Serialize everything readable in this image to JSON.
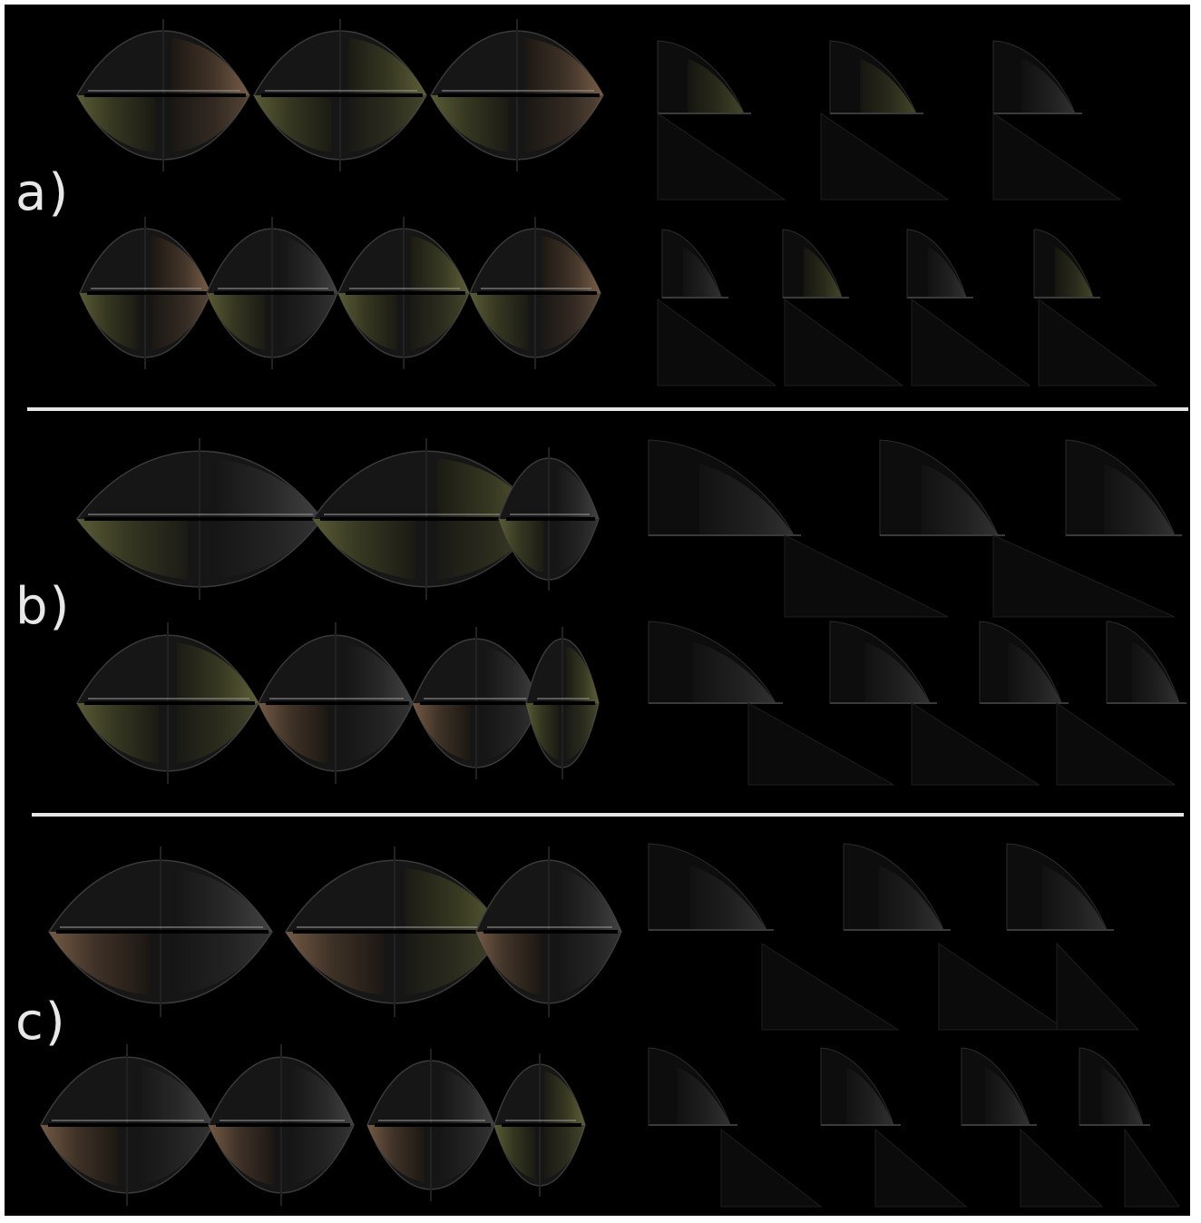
{
  "panels": [
    {
      "label": "a)",
      "top_row_shapes": 3,
      "bottom_row_shapes": 4
    },
    {
      "label": "b)",
      "top_row_shapes": 3,
      "bottom_row_shapes": 4
    },
    {
      "label": "c)",
      "top_row_shapes": 3,
      "bottom_row_shapes": 4
    }
  ],
  "colors": {
    "background": "#000000",
    "separator": "#e6e6e6",
    "olive": "#5c5e34",
    "tan": "#7a5e46",
    "grey": "#3c3c3c"
  }
}
